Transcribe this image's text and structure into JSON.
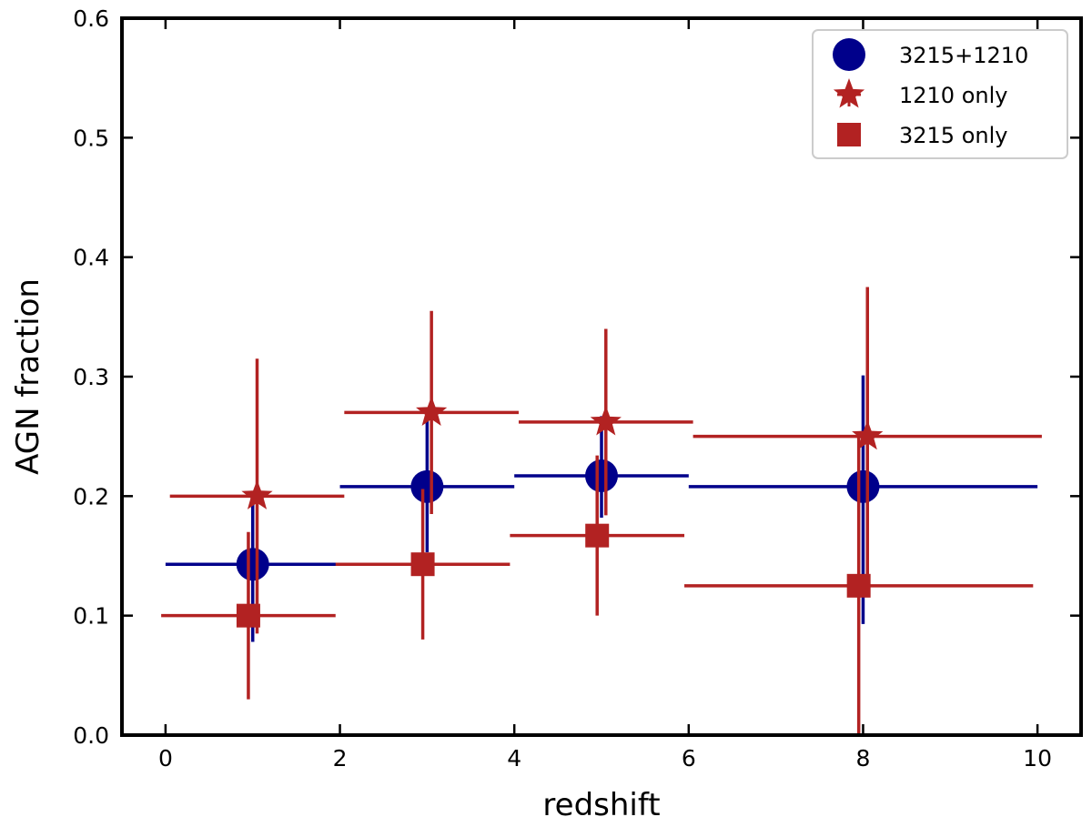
{
  "chart_data": {
    "type": "scatter",
    "xlabel": "redshift",
    "ylabel": "AGN fraction",
    "xlim": [
      -0.5,
      10.5
    ],
    "ylim": [
      0.0,
      0.6
    ],
    "xticks": [
      0,
      2,
      4,
      6,
      8,
      10
    ],
    "yticks": [
      0.0,
      0.1,
      0.2,
      0.3,
      0.4,
      0.5,
      0.6
    ],
    "xtick_labels": [
      "0",
      "2",
      "4",
      "6",
      "8",
      "10"
    ],
    "ytick_labels": [
      "0.0",
      "0.1",
      "0.2",
      "0.3",
      "0.4",
      "0.5",
      "0.6"
    ],
    "grid": false,
    "legend_position": "top-right",
    "series": [
      {
        "name": "3215+1210",
        "marker": "circle",
        "color": "#00008b",
        "points": [
          {
            "x": 1.0,
            "y": 0.143,
            "xerr": [
              1.0,
              1.0
            ],
            "yerr": [
              0.065,
              0.05
            ]
          },
          {
            "x": 3.0,
            "y": 0.208,
            "xerr": [
              1.0,
              1.0
            ],
            "yerr": [
              0.055,
              0.055
            ]
          },
          {
            "x": 5.0,
            "y": 0.217,
            "xerr": [
              1.0,
              1.0
            ],
            "yerr": [
              0.035,
              0.05
            ]
          },
          {
            "x": 8.0,
            "y": 0.208,
            "xerr": [
              2.0,
              2.0
            ],
            "yerr": [
              0.115,
              0.093
            ]
          }
        ]
      },
      {
        "name": "1210 only",
        "marker": "star",
        "color": "#b22222",
        "points": [
          {
            "x": 1.05,
            "y": 0.2,
            "xerr": [
              1.0,
              1.0
            ],
            "yerr": [
              0.115,
              0.115
            ]
          },
          {
            "x": 3.05,
            "y": 0.27,
            "xerr": [
              1.0,
              1.0
            ],
            "yerr": [
              0.085,
              0.085
            ]
          },
          {
            "x": 5.05,
            "y": 0.262,
            "xerr": [
              1.0,
              1.0
            ],
            "yerr": [
              0.078,
              0.078
            ]
          },
          {
            "x": 8.05,
            "y": 0.25,
            "xerr": [
              2.0,
              2.0
            ],
            "yerr": [
              0.125,
              0.125
            ]
          }
        ]
      },
      {
        "name": "3215 only",
        "marker": "square",
        "color": "#b22222",
        "points": [
          {
            "x": 0.95,
            "y": 0.1,
            "xerr": [
              1.0,
              1.0
            ],
            "yerr": [
              0.07,
              0.07
            ]
          },
          {
            "x": 2.95,
            "y": 0.143,
            "xerr": [
              1.0,
              1.0
            ],
            "yerr": [
              0.063,
              0.063
            ]
          },
          {
            "x": 4.95,
            "y": 0.167,
            "xerr": [
              1.0,
              1.0
            ],
            "yerr": [
              0.067,
              0.067
            ]
          },
          {
            "x": 7.95,
            "y": 0.125,
            "xerr": [
              2.0,
              2.0
            ],
            "yerr": [
              0.125,
              0.125
            ]
          }
        ]
      }
    ]
  }
}
